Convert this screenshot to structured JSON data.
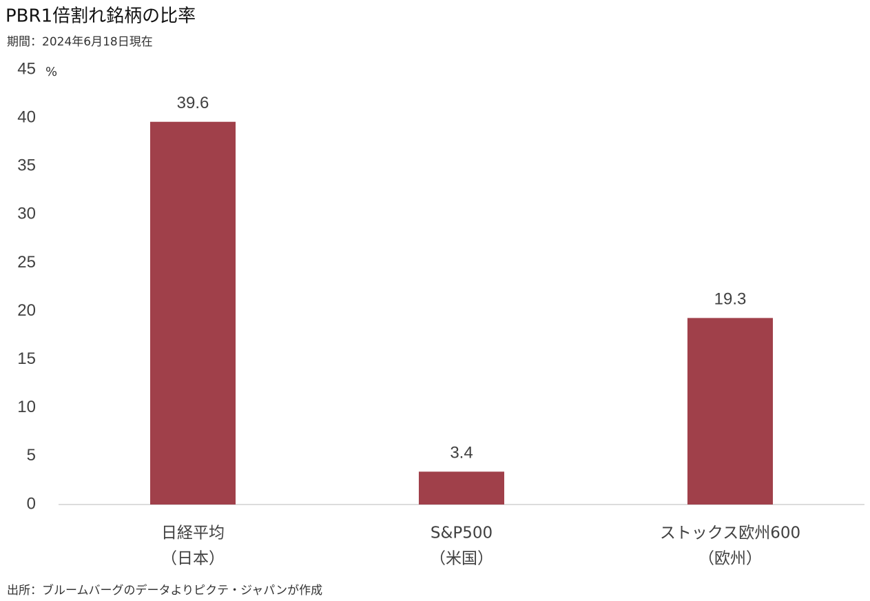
{
  "chart_data": {
    "type": "bar",
    "title": "PBR1倍割れ銘柄の比率",
    "subtitle": "期間：2024年6月18日現在",
    "y_unit": "%",
    "source": "出所：ブルームバーグのデータよりピクテ・ジャパンが作成",
    "categories": [
      "日経平均",
      "S&P500",
      "ストックス欧州600"
    ],
    "category_sublabels": [
      "（日本）",
      "（米国）",
      "（欧州）"
    ],
    "values": [
      39.6,
      3.4,
      19.3
    ],
    "color": "#a0404a",
    "ylim": [
      0,
      45
    ],
    "yticks": [
      0,
      5,
      10,
      15,
      20,
      25,
      30,
      35,
      40,
      45
    ],
    "grid": false
  }
}
